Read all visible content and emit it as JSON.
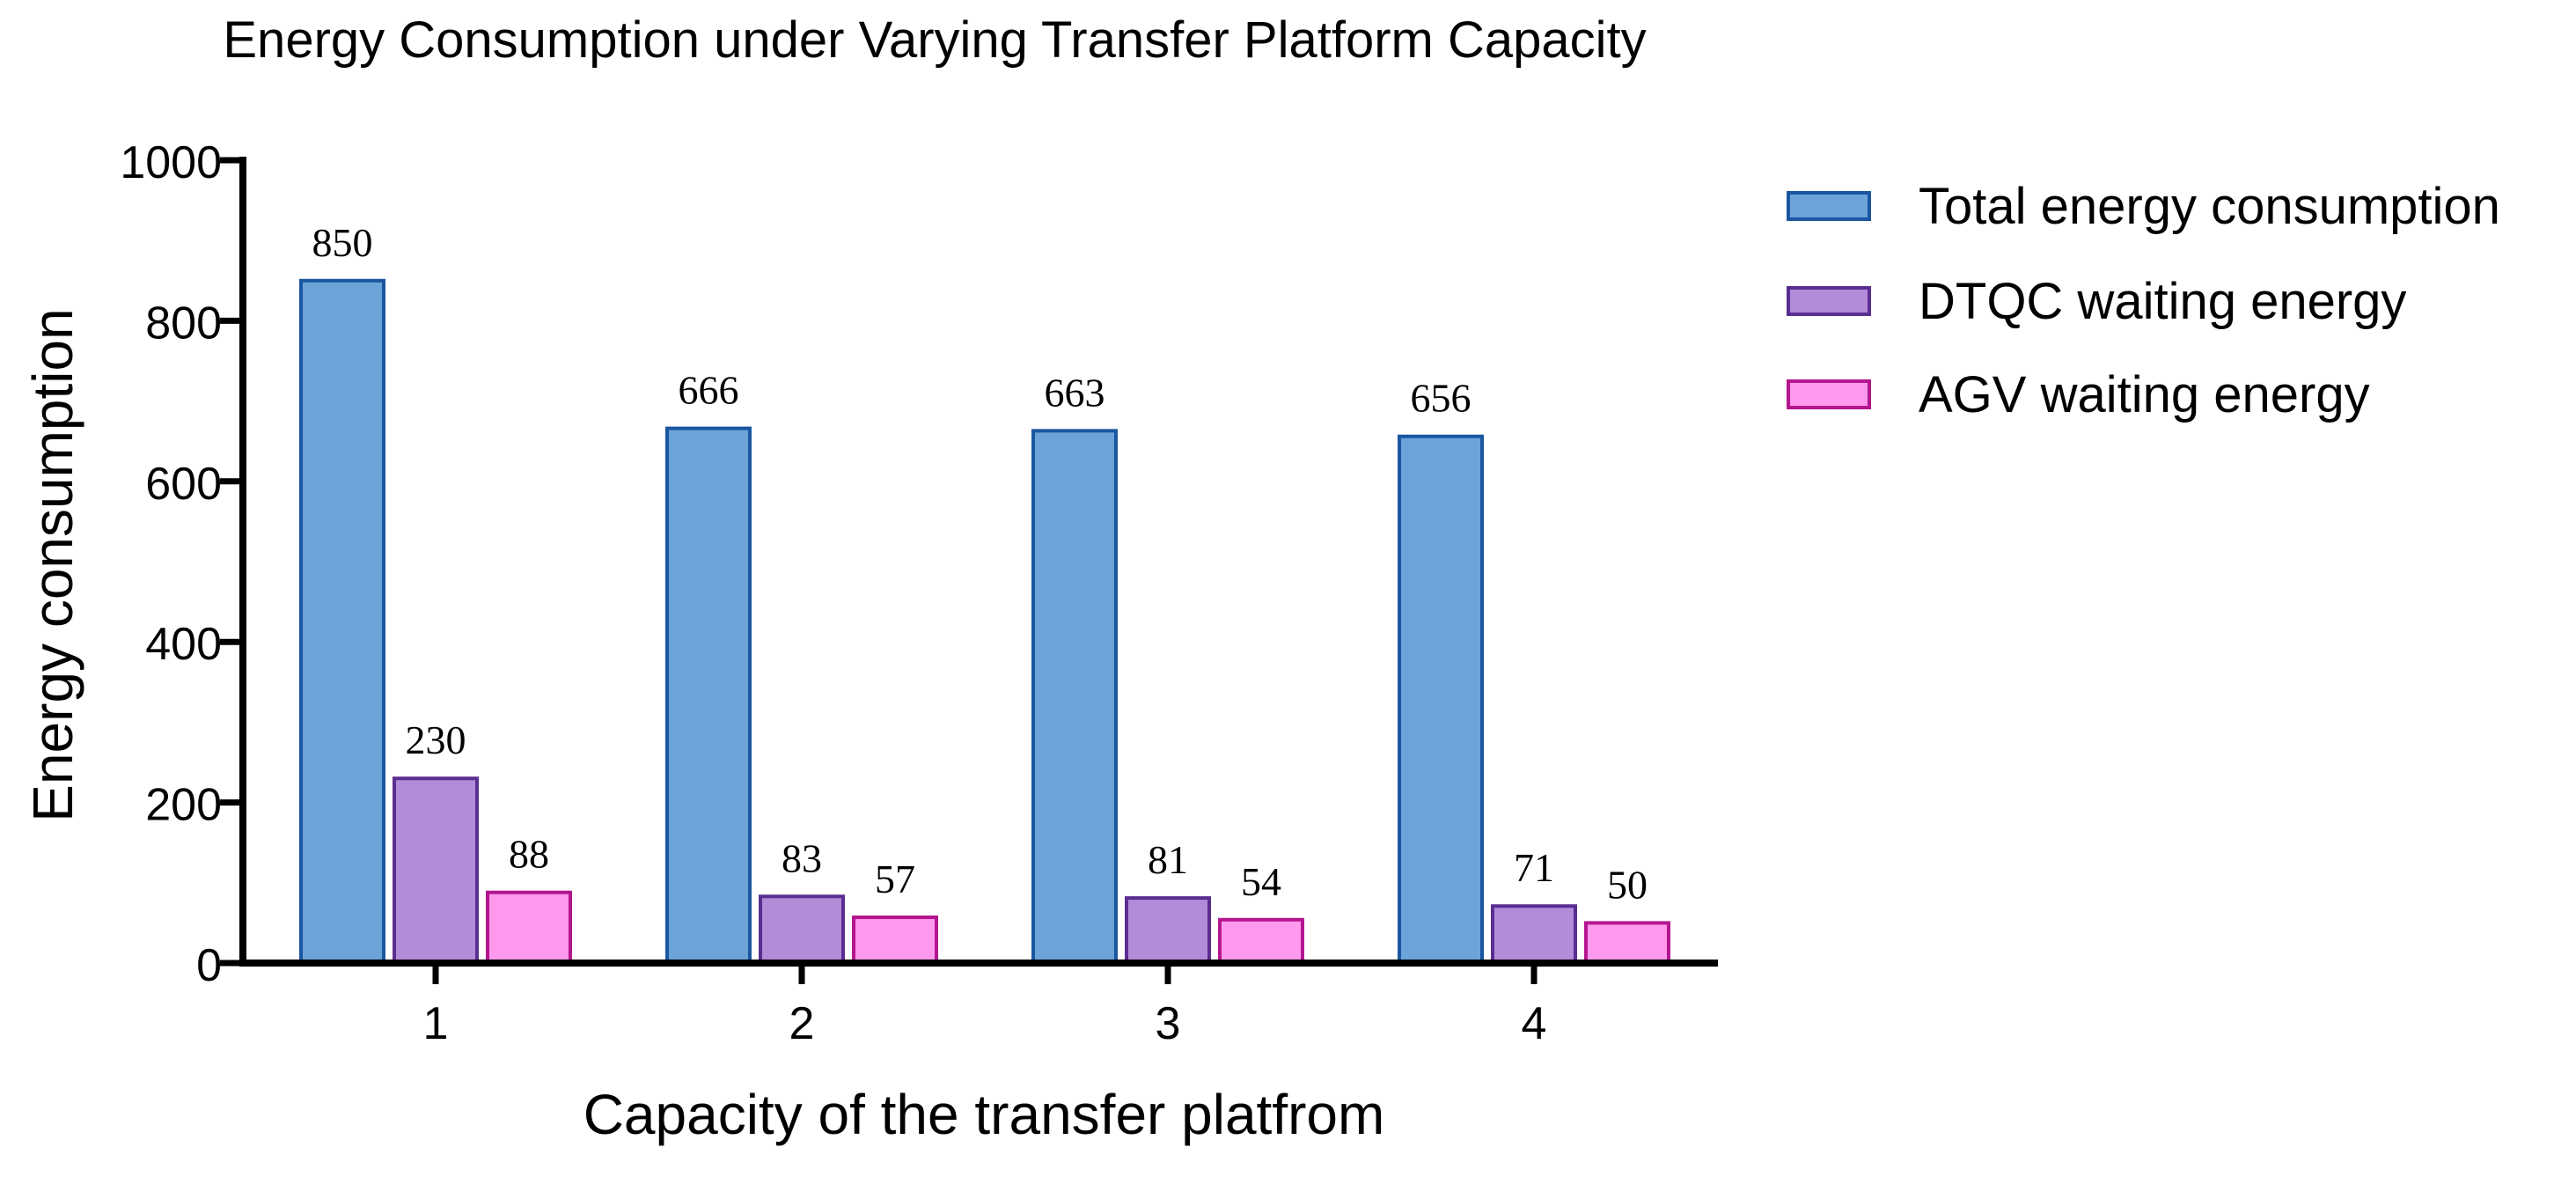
{
  "chart_data": {
    "type": "bar",
    "title": "Energy Consumption under Varying Transfer Platform Capacity",
    "xlabel": "Capacity of the transfer platfrom",
    "ylabel": "Energy consumption",
    "categories": [
      "1",
      "2",
      "3",
      "4"
    ],
    "ylim": [
      0,
      1000
    ],
    "yticks": [
      0,
      200,
      400,
      600,
      800,
      1000
    ],
    "ytick_labels": [
      "0",
      "200",
      "400",
      "600",
      "800",
      "1000"
    ],
    "grid": false,
    "legend_position": "top-right",
    "series": [
      {
        "name": "Total energy consumption",
        "values": [
          850,
          666,
          663,
          656
        ],
        "labels": [
          "850",
          "666",
          "663",
          "656"
        ],
        "fill": "#6CA3D8",
        "stroke": "#1B57A0"
      },
      {
        "name": "DTQC waiting energy",
        "values": [
          230,
          83,
          81,
          71
        ],
        "labels": [
          "230",
          "83",
          "81",
          "71"
        ],
        "fill": "#B28CD9",
        "stroke": "#5A2E91"
      },
      {
        "name": "AGV waiting energy",
        "values": [
          88,
          57,
          54,
          50
        ],
        "labels": [
          "88",
          "57",
          "54",
          "50"
        ],
        "fill": "#FE99EE",
        "stroke": "#B4168F"
      }
    ]
  }
}
